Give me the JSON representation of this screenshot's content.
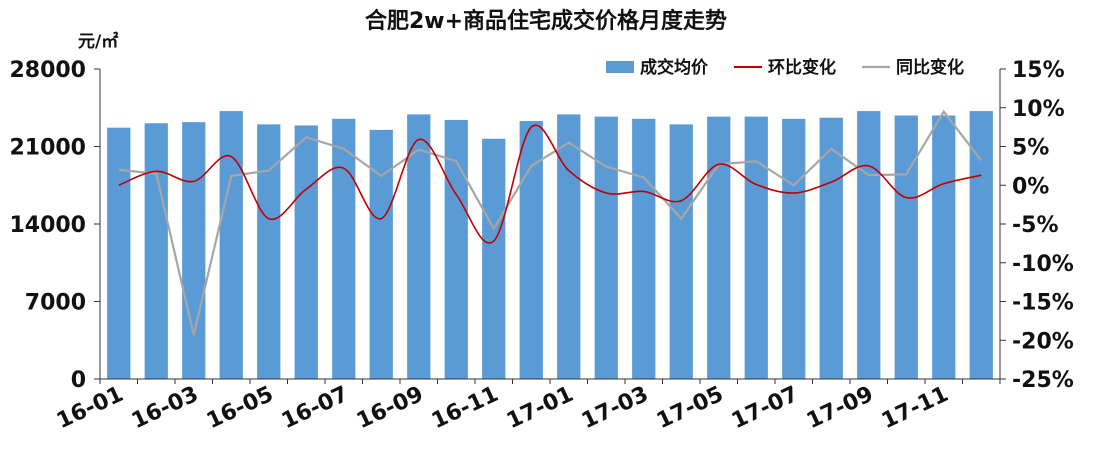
{
  "chart_data": {
    "type": "bar",
    "title": "合肥2w+商品住宅成交价格月度走势",
    "ylabel": "元/㎡",
    "ylim": [
      0,
      28000
    ],
    "yticks": [
      "28000",
      "21000",
      "14000",
      "7000",
      "0"
    ],
    "y2lim": [
      -25,
      15
    ],
    "y2ticks": [
      "15%",
      "10%",
      "5%",
      "0%",
      "-5%",
      "-10%",
      "-15%",
      "-20%",
      "-25%"
    ],
    "x": [
      "16-01",
      "16-02",
      "16-03",
      "16-04",
      "16-05",
      "16-06",
      "16-07",
      "16-08",
      "16-09",
      "16-10",
      "16-11",
      "16-12",
      "17-01",
      "17-02",
      "17-03",
      "17-04",
      "17-05",
      "17-06",
      "17-07",
      "17-08",
      "17-09",
      "17-10",
      "17-11",
      "17-12"
    ],
    "xticks": [
      "16-01",
      "16-03",
      "16-05",
      "16-07",
      "16-09",
      "16-11",
      "17-01",
      "17-03",
      "17-05",
      "17-07",
      "17-09",
      "17-11"
    ],
    "legend_position": "top-right",
    "colors": {
      "bar": "#5B9BD5",
      "mom": "#C00000",
      "yoy": "#A6A6A6"
    },
    "series": [
      {
        "name": "成交均价",
        "type": "bar",
        "axis": "left",
        "values": [
          22700,
          23100,
          23200,
          24200,
          23000,
          22900,
          23500,
          22500,
          23900,
          23400,
          21700,
          23300,
          23900,
          23700,
          23500,
          23000,
          23700,
          23700,
          23500,
          23600,
          24200,
          23800,
          23800,
          24200
        ]
      },
      {
        "name": "环比变化",
        "type": "line",
        "axis": "right",
        "values": [
          0.0,
          1.8,
          0.5,
          3.7,
          -4.3,
          -0.5,
          2.2,
          -4.3,
          5.9,
          -1.2,
          -7.2,
          7.5,
          1.9,
          -1.0,
          -0.8,
          -2.0,
          2.7,
          0.1,
          -1.0,
          0.4,
          2.5,
          -1.6,
          0.2,
          1.3
        ]
      },
      {
        "name": "同比变化",
        "type": "line",
        "axis": "right",
        "values": [
          2.0,
          1.5,
          -19.3,
          1.2,
          1.9,
          6.2,
          4.7,
          1.2,
          4.6,
          3.1,
          -5.6,
          2.5,
          5.5,
          2.4,
          1.0,
          -4.3,
          2.7,
          3.1,
          0.0,
          4.7,
          1.3,
          1.4,
          9.5,
          3.2
        ]
      }
    ]
  }
}
